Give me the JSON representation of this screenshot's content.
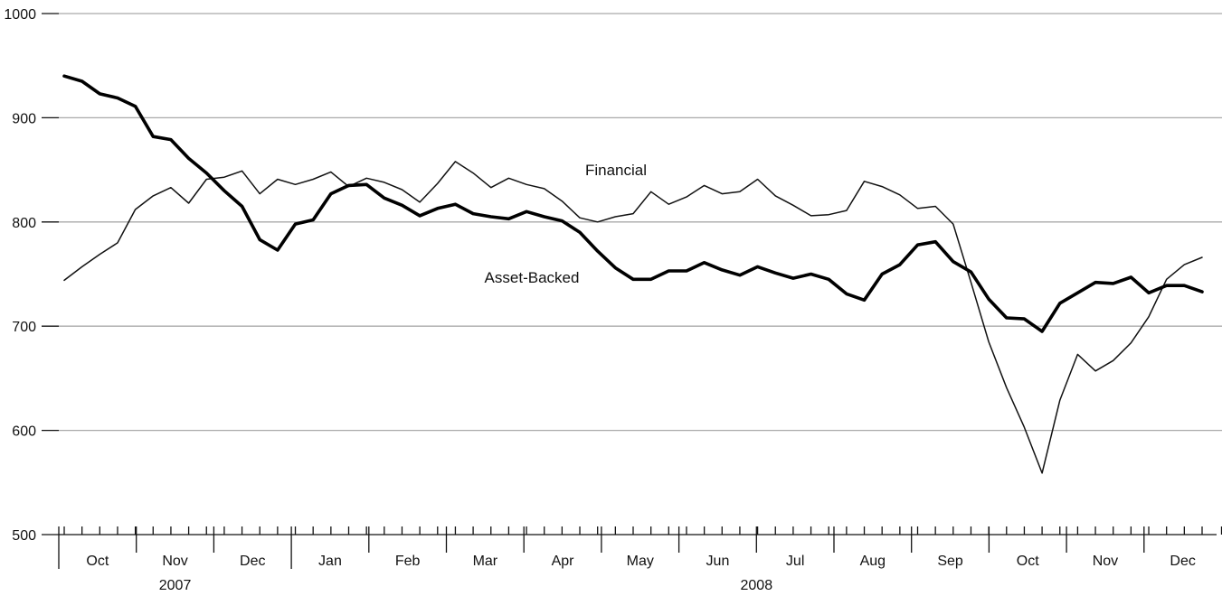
{
  "chart_data": {
    "type": "line",
    "title": "",
    "xlabel": "",
    "ylabel": "",
    "ylim": [
      500,
      1000
    ],
    "yticks": [
      500,
      600,
      700,
      800,
      900,
      1000
    ],
    "grid": true,
    "months": [
      "Oct",
      "Nov",
      "Dec",
      "Jan",
      "Feb",
      "Mar",
      "Apr",
      "May",
      "Jun",
      "Jul",
      "Aug",
      "Sep",
      "Oct",
      "Nov",
      "Dec"
    ],
    "years": [
      {
        "label": "2007",
        "from_month": 0,
        "to_month": 2
      },
      {
        "label": "2008",
        "from_month": 3,
        "to_month": 14
      }
    ],
    "series": [
      {
        "name": "Financial",
        "style": "thin",
        "color": "#111111",
        "values": [
          744,
          757,
          769,
          780,
          812,
          825,
          833,
          818,
          841,
          843,
          849,
          827,
          841,
          836,
          841,
          848,
          834,
          842,
          838,
          831,
          819,
          837,
          858,
          847,
          833,
          842,
          836,
          832,
          820,
          804,
          800,
          805,
          808,
          829,
          817,
          824,
          835,
          827,
          829,
          841,
          825,
          816,
          806,
          807,
          811,
          839,
          834,
          826,
          813,
          815,
          798,
          742,
          685,
          641,
          603,
          559,
          629,
          673,
          657,
          667,
          684,
          709,
          745,
          759,
          766
        ]
      },
      {
        "name": "Asset-Backed",
        "style": "thick",
        "color": "#000000",
        "values": [
          940,
          935,
          923,
          919,
          911,
          882,
          879,
          861,
          847,
          830,
          815,
          783,
          773,
          798,
          802,
          827,
          835,
          836,
          823,
          816,
          806,
          813,
          817,
          808,
          805,
          803,
          810,
          805,
          801,
          790,
          772,
          756,
          745,
          745,
          753,
          753,
          761,
          754,
          749,
          757,
          751,
          746,
          750,
          745,
          731,
          725,
          750,
          759,
          778,
          781,
          762,
          752,
          726,
          708,
          707,
          695,
          722,
          732,
          742,
          741,
          747,
          732,
          739,
          739,
          733
        ]
      }
    ]
  }
}
